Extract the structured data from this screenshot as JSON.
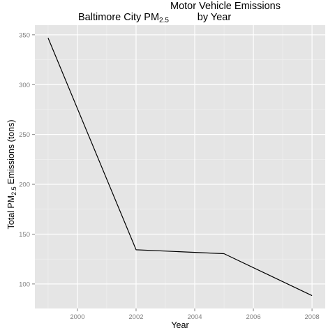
{
  "chart_data": {
    "type": "line",
    "title": {
      "main": "Baltimore City PM",
      "main_sub": "2.5",
      "line1": "Motor Vehicle Emissions",
      "line2": "by Year"
    },
    "xlabel": "Year",
    "ylabel": {
      "prefix": "Total PM",
      "sub": "2.5",
      "suffix": " Emissions (tons)"
    },
    "x": [
      1999,
      2002,
      2005,
      2008
    ],
    "series": [
      {
        "values": [
          346.8,
          134.3,
          130.4,
          88.3
        ]
      }
    ],
    "xlim": [
      1998.55,
      2008.45
    ],
    "ylim": [
      75.4,
      359.7
    ],
    "x_ticks": [
      2000,
      2002,
      2004,
      2006,
      2008
    ],
    "y_ticks": [
      100,
      150,
      200,
      250,
      300,
      350
    ],
    "grid": true,
    "legend": "none",
    "colors": {
      "panel": "#e5e5e5",
      "grid_major": "#ffffff",
      "grid_minor": "#f2f2f2",
      "line": "#000000",
      "tick_label": "#7f7f7f"
    }
  }
}
